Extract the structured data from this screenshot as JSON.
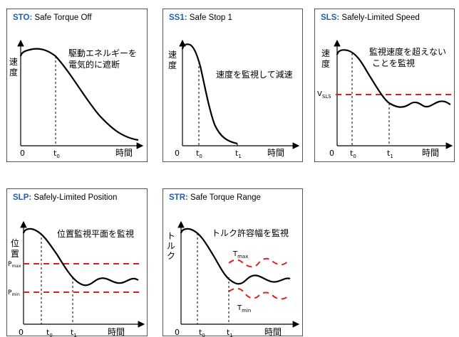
{
  "colors": {
    "title_accent": "#1f5fae",
    "limit_line": "#e02020",
    "curve": "#000000",
    "border": "#555555"
  },
  "panels": {
    "sto": {
      "abbr": "STO",
      "title": "Safe Torque Off",
      "ylabel_chars": [
        "速",
        "度"
      ],
      "annotation_lines": [
        "駆動エネルギーを",
        "電気的に遮断"
      ],
      "x_origin": "0",
      "t0": "t",
      "t0_sub": "0",
      "x_axis": "時間"
    },
    "ss1": {
      "abbr": "SS1",
      "title": "Safe Stop 1",
      "ylabel_chars": [
        "速",
        "度"
      ],
      "annotation": "速度を監視して減速",
      "x_origin": "0",
      "t0": "t",
      "t0_sub": "0",
      "t1": "t",
      "t1_sub": "1",
      "x_axis": "時間"
    },
    "sls": {
      "abbr": "SLS",
      "title": "Safely-Limited Speed",
      "ylabel_chars": [
        "速",
        "度"
      ],
      "annotation_lines": [
        "監視速度を超えない",
        "ことを監視"
      ],
      "limit": "V",
      "limit_sub": "SLS",
      "x_origin": "0",
      "t0": "t",
      "t0_sub": "0",
      "t1": "t",
      "t1_sub": "1",
      "x_axis": "時間"
    },
    "slp": {
      "abbr": "SLP",
      "title": "Safely-Limited Position",
      "ylabel_chars": [
        "位",
        "置"
      ],
      "annotation": "位置監視平面を監視",
      "pmax": "P",
      "pmax_sub": "max",
      "pmin": "P",
      "pmin_sub": "min",
      "x_origin": "0",
      "t0": "t",
      "t0_sub": "0",
      "t1": "t",
      "t1_sub": "1",
      "x_axis": "時間"
    },
    "str": {
      "abbr": "STR",
      "title": "Safe Torque Range",
      "ylabel_chars": [
        "ト",
        "ル",
        "ク"
      ],
      "annotation": "トルク許容幅を監視",
      "tmax": "T",
      "tmax_sub": "max",
      "tmin": "T",
      "tmin_sub": "min",
      "x_origin": "0",
      "t0": "t",
      "t0_sub": "0",
      "t1": "t",
      "t1_sub": "1",
      "x_axis": "時間"
    }
  }
}
